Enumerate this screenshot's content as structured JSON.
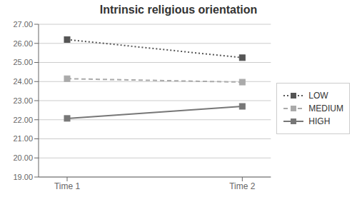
{
  "chart_data": {
    "type": "line",
    "title": "Intrinsic religious orientation",
    "categories": [
      "Time 1",
      "Time 2"
    ],
    "series": [
      {
        "name": "LOW",
        "color": "#555555",
        "values": [
          26.2,
          25.25
        ],
        "line_style": "dotted",
        "marker": "square"
      },
      {
        "name": "MEDIUM",
        "color": "#aaaaaa",
        "values": [
          24.15,
          23.97
        ],
        "line_style": "dashed",
        "marker": "square"
      },
      {
        "name": "HIGH",
        "color": "#777777",
        "values": [
          22.07,
          22.7
        ],
        "line_style": "solid",
        "marker": "square"
      }
    ],
    "ylim": [
      19.0,
      27.0
    ],
    "yticks": [
      {
        "value": 19.0,
        "label": "19.00"
      },
      {
        "value": 20.0,
        "label": "20.00"
      },
      {
        "value": 21.0,
        "label": "21.00"
      },
      {
        "value": 22.0,
        "label": "22.00"
      },
      {
        "value": 23.0,
        "label": "23.00"
      },
      {
        "value": 24.0,
        "label": "24.00"
      },
      {
        "value": 25.0,
        "label": "25.00"
      },
      {
        "value": 26.0,
        "label": "26.00"
      },
      {
        "value": 27.0,
        "label": "27.00"
      }
    ],
    "grid": true,
    "legend": "right"
  }
}
